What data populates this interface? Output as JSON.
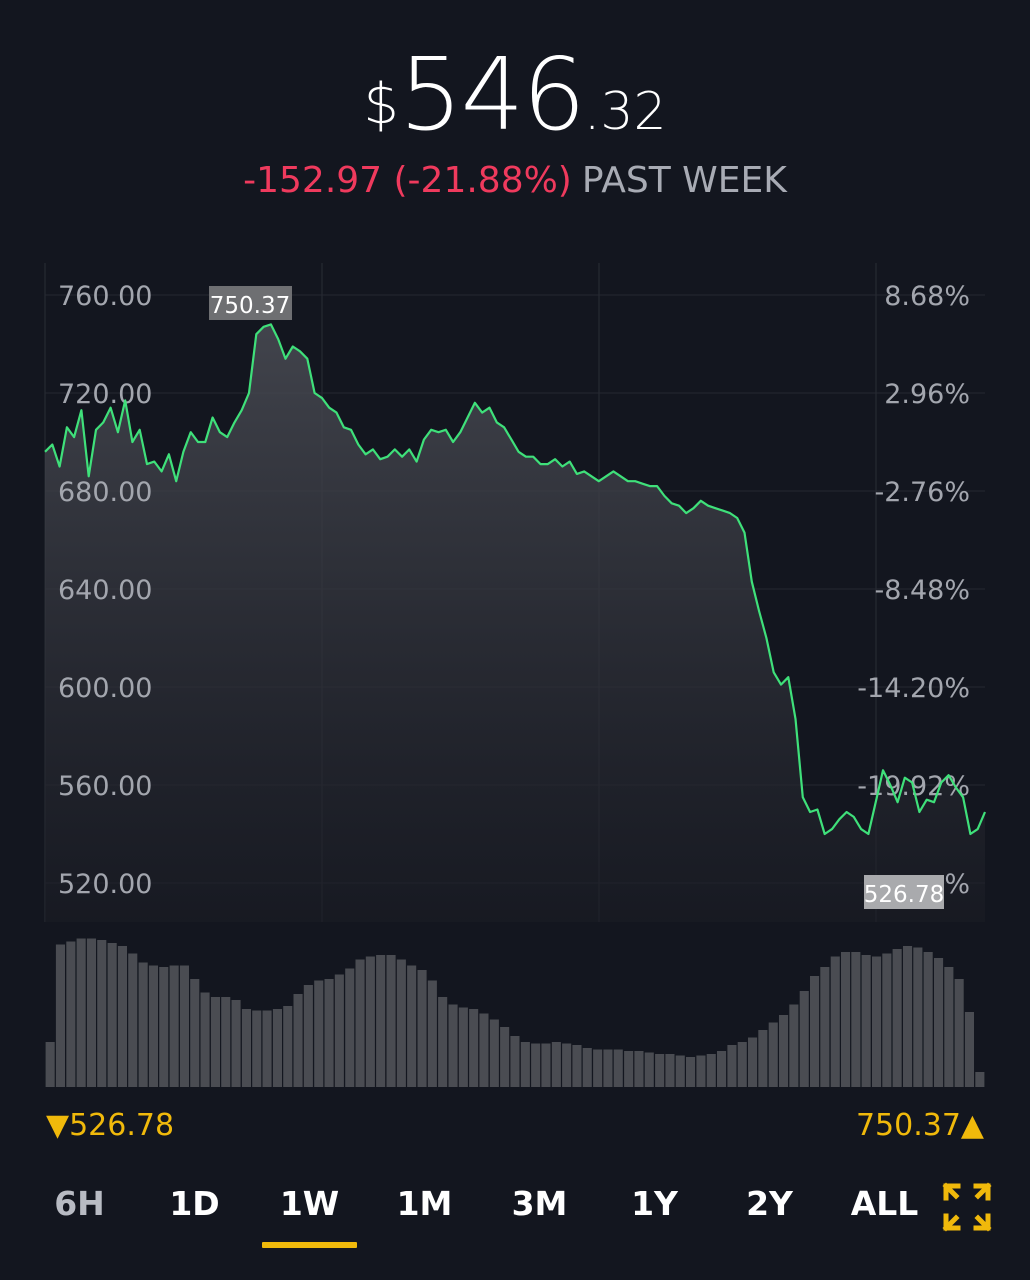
{
  "header": {
    "currency": "$",
    "price_int": "546",
    "price_dec": ".32",
    "change": "-152.97 (-21.88%)",
    "period": "PAST WEEK"
  },
  "range": {
    "low": "526.78",
    "high": "750.37"
  },
  "tabs": [
    {
      "label": "6H",
      "active": false
    },
    {
      "label": "1D",
      "active": false
    },
    {
      "label": "1W",
      "active": true
    },
    {
      "label": "1M",
      "active": false
    },
    {
      "label": "3M",
      "active": false
    },
    {
      "label": "1Y",
      "active": false
    },
    {
      "label": "2Y",
      "active": false
    },
    {
      "label": "ALL",
      "active": false
    }
  ],
  "colors": {
    "background": "#13161f",
    "line": "#3fe07a",
    "negative": "#ef3a5d",
    "accent": "#f0b90b",
    "volume": "#4a4c52"
  },
  "icons": {
    "expand": "expand-arrows-icon"
  },
  "chart_data": [
    {
      "type": "line",
      "ylim": [
        510,
        770
      ],
      "left_ticks": [
        "760.00",
        "720.00",
        "680.00",
        "640.00",
        "600.00",
        "560.00",
        "520.00"
      ],
      "left_tick_values": [
        760,
        720,
        680,
        640,
        600,
        560,
        520
      ],
      "right_ticks": [
        "8.68%",
        "2.96%",
        "-2.76%",
        "-8.48%",
        "-14.20%",
        "-19.92%",
        "%"
      ],
      "max_label": "750.37",
      "min_label": "526.78",
      "series": [
        {
          "values": [
            696,
            699,
            690,
            706,
            702,
            713,
            686,
            705,
            708,
            714,
            704,
            717,
            700,
            705,
            691,
            692,
            688,
            695,
            684,
            696,
            704,
            700,
            700,
            710,
            704,
            702,
            708,
            713,
            720,
            744,
            747,
            748,
            742,
            734,
            739,
            737,
            734,
            720,
            718,
            714,
            712,
            706,
            705,
            699,
            695,
            697,
            693,
            694,
            697,
            694,
            697,
            692,
            701,
            705,
            704,
            705,
            700,
            704,
            710,
            716,
            712,
            714,
            708,
            706,
            701,
            696,
            694,
            694,
            691,
            691,
            693,
            690,
            692,
            687,
            688,
            686,
            684,
            686,
            688,
            686,
            684,
            684,
            683,
            682,
            682,
            678,
            675,
            674,
            671,
            673,
            676,
            674,
            673,
            672,
            671,
            669,
            663,
            643,
            631,
            620,
            606,
            601,
            604,
            587,
            555,
            549,
            550,
            540,
            542,
            546,
            549,
            547,
            542,
            540,
            553,
            566,
            560,
            553,
            563,
            561,
            549,
            554,
            553,
            561,
            564,
            559,
            555,
            540,
            542,
            549
          ]
        }
      ]
    },
    {
      "type": "bar",
      "name": "volume",
      "values": [
        30,
        95,
        97,
        99,
        99,
        98,
        96,
        94,
        89,
        83,
        81,
        80,
        81,
        81,
        72,
        63,
        60,
        60,
        58,
        52,
        51,
        51,
        52,
        54,
        62,
        68,
        71,
        72,
        75,
        79,
        85,
        87,
        88,
        88,
        85,
        81,
        78,
        71,
        60,
        55,
        53,
        52,
        49,
        45,
        40,
        34,
        30,
        29,
        29,
        30,
        29,
        28,
        26,
        25,
        25,
        25,
        24,
        24,
        23,
        22,
        22,
        21,
        20,
        21,
        22,
        24,
        28,
        30,
        33,
        38,
        43,
        48,
        55,
        64,
        74,
        80,
        87,
        90,
        90,
        88,
        87,
        89,
        92,
        94,
        93,
        90,
        86,
        80,
        72,
        50,
        10
      ]
    }
  ]
}
